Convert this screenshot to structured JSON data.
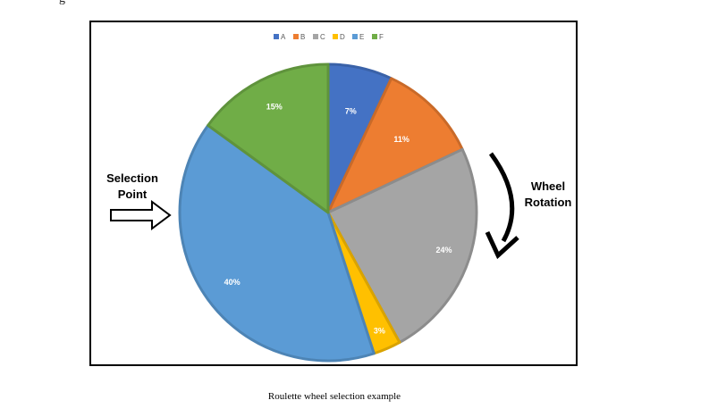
{
  "header_fragment": "g",
  "figure": {
    "caption": "Roulette wheel selection example"
  },
  "annotations": {
    "selection": [
      "Selection",
      "Point"
    ],
    "rotation": [
      "Wheel",
      "Rotation"
    ]
  },
  "chart_data": {
    "type": "pie",
    "categories": [
      "A",
      "B",
      "C",
      "D",
      "E",
      "F"
    ],
    "values": [
      7,
      11,
      24,
      3,
      40,
      15
    ],
    "labels": [
      "7%",
      "11%",
      "24%",
      "3%",
      "40%",
      "15%"
    ],
    "colors": [
      "#4472C4",
      "#ED7D31",
      "#A5A5A5",
      "#FFC000",
      "#5B9BD5",
      "#70AD47"
    ],
    "edge_colors": [
      "#3A62A8",
      "#C96A29",
      "#8C8C8C",
      "#D9A300",
      "#4D84B5",
      "#5F933C"
    ],
    "start_angle": "12 o'clock",
    "direction": "clockwise",
    "legend": "top"
  }
}
